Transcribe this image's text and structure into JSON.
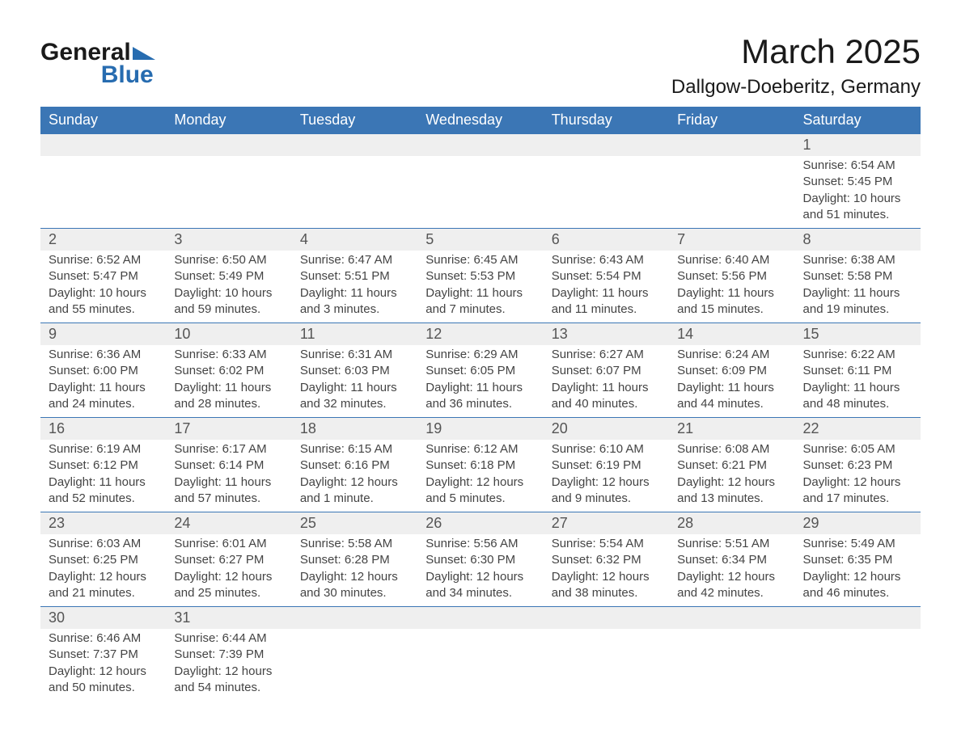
{
  "brand": {
    "name1": "General",
    "name2": "Blue",
    "color_primary": "#276cb0"
  },
  "title": "March 2025",
  "location": "Dallgow-Doeberitz, Germany",
  "colors": {
    "header_bg": "#3b76b5",
    "header_text": "#ffffff",
    "daynum_bg": "#efefef",
    "border": "#3b76b5",
    "text": "#444444",
    "background": "#ffffff"
  },
  "day_headers": [
    "Sunday",
    "Monday",
    "Tuesday",
    "Wednesday",
    "Thursday",
    "Friday",
    "Saturday"
  ],
  "weeks": [
    [
      null,
      null,
      null,
      null,
      null,
      null,
      {
        "n": "1",
        "sr": "Sunrise: 6:54 AM",
        "ss": "Sunset: 5:45 PM",
        "d1": "Daylight: 10 hours",
        "d2": "and 51 minutes."
      }
    ],
    [
      {
        "n": "2",
        "sr": "Sunrise: 6:52 AM",
        "ss": "Sunset: 5:47 PM",
        "d1": "Daylight: 10 hours",
        "d2": "and 55 minutes."
      },
      {
        "n": "3",
        "sr": "Sunrise: 6:50 AM",
        "ss": "Sunset: 5:49 PM",
        "d1": "Daylight: 10 hours",
        "d2": "and 59 minutes."
      },
      {
        "n": "4",
        "sr": "Sunrise: 6:47 AM",
        "ss": "Sunset: 5:51 PM",
        "d1": "Daylight: 11 hours",
        "d2": "and 3 minutes."
      },
      {
        "n": "5",
        "sr": "Sunrise: 6:45 AM",
        "ss": "Sunset: 5:53 PM",
        "d1": "Daylight: 11 hours",
        "d2": "and 7 minutes."
      },
      {
        "n": "6",
        "sr": "Sunrise: 6:43 AM",
        "ss": "Sunset: 5:54 PM",
        "d1": "Daylight: 11 hours",
        "d2": "and 11 minutes."
      },
      {
        "n": "7",
        "sr": "Sunrise: 6:40 AM",
        "ss": "Sunset: 5:56 PM",
        "d1": "Daylight: 11 hours",
        "d2": "and 15 minutes."
      },
      {
        "n": "8",
        "sr": "Sunrise: 6:38 AM",
        "ss": "Sunset: 5:58 PM",
        "d1": "Daylight: 11 hours",
        "d2": "and 19 minutes."
      }
    ],
    [
      {
        "n": "9",
        "sr": "Sunrise: 6:36 AM",
        "ss": "Sunset: 6:00 PM",
        "d1": "Daylight: 11 hours",
        "d2": "and 24 minutes."
      },
      {
        "n": "10",
        "sr": "Sunrise: 6:33 AM",
        "ss": "Sunset: 6:02 PM",
        "d1": "Daylight: 11 hours",
        "d2": "and 28 minutes."
      },
      {
        "n": "11",
        "sr": "Sunrise: 6:31 AM",
        "ss": "Sunset: 6:03 PM",
        "d1": "Daylight: 11 hours",
        "d2": "and 32 minutes."
      },
      {
        "n": "12",
        "sr": "Sunrise: 6:29 AM",
        "ss": "Sunset: 6:05 PM",
        "d1": "Daylight: 11 hours",
        "d2": "and 36 minutes."
      },
      {
        "n": "13",
        "sr": "Sunrise: 6:27 AM",
        "ss": "Sunset: 6:07 PM",
        "d1": "Daylight: 11 hours",
        "d2": "and 40 minutes."
      },
      {
        "n": "14",
        "sr": "Sunrise: 6:24 AM",
        "ss": "Sunset: 6:09 PM",
        "d1": "Daylight: 11 hours",
        "d2": "and 44 minutes."
      },
      {
        "n": "15",
        "sr": "Sunrise: 6:22 AM",
        "ss": "Sunset: 6:11 PM",
        "d1": "Daylight: 11 hours",
        "d2": "and 48 minutes."
      }
    ],
    [
      {
        "n": "16",
        "sr": "Sunrise: 6:19 AM",
        "ss": "Sunset: 6:12 PM",
        "d1": "Daylight: 11 hours",
        "d2": "and 52 minutes."
      },
      {
        "n": "17",
        "sr": "Sunrise: 6:17 AM",
        "ss": "Sunset: 6:14 PM",
        "d1": "Daylight: 11 hours",
        "d2": "and 57 minutes."
      },
      {
        "n": "18",
        "sr": "Sunrise: 6:15 AM",
        "ss": "Sunset: 6:16 PM",
        "d1": "Daylight: 12 hours",
        "d2": "and 1 minute."
      },
      {
        "n": "19",
        "sr": "Sunrise: 6:12 AM",
        "ss": "Sunset: 6:18 PM",
        "d1": "Daylight: 12 hours",
        "d2": "and 5 minutes."
      },
      {
        "n": "20",
        "sr": "Sunrise: 6:10 AM",
        "ss": "Sunset: 6:19 PM",
        "d1": "Daylight: 12 hours",
        "d2": "and 9 minutes."
      },
      {
        "n": "21",
        "sr": "Sunrise: 6:08 AM",
        "ss": "Sunset: 6:21 PM",
        "d1": "Daylight: 12 hours",
        "d2": "and 13 minutes."
      },
      {
        "n": "22",
        "sr": "Sunrise: 6:05 AM",
        "ss": "Sunset: 6:23 PM",
        "d1": "Daylight: 12 hours",
        "d2": "and 17 minutes."
      }
    ],
    [
      {
        "n": "23",
        "sr": "Sunrise: 6:03 AM",
        "ss": "Sunset: 6:25 PM",
        "d1": "Daylight: 12 hours",
        "d2": "and 21 minutes."
      },
      {
        "n": "24",
        "sr": "Sunrise: 6:01 AM",
        "ss": "Sunset: 6:27 PM",
        "d1": "Daylight: 12 hours",
        "d2": "and 25 minutes."
      },
      {
        "n": "25",
        "sr": "Sunrise: 5:58 AM",
        "ss": "Sunset: 6:28 PM",
        "d1": "Daylight: 12 hours",
        "d2": "and 30 minutes."
      },
      {
        "n": "26",
        "sr": "Sunrise: 5:56 AM",
        "ss": "Sunset: 6:30 PM",
        "d1": "Daylight: 12 hours",
        "d2": "and 34 minutes."
      },
      {
        "n": "27",
        "sr": "Sunrise: 5:54 AM",
        "ss": "Sunset: 6:32 PM",
        "d1": "Daylight: 12 hours",
        "d2": "and 38 minutes."
      },
      {
        "n": "28",
        "sr": "Sunrise: 5:51 AM",
        "ss": "Sunset: 6:34 PM",
        "d1": "Daylight: 12 hours",
        "d2": "and 42 minutes."
      },
      {
        "n": "29",
        "sr": "Sunrise: 5:49 AM",
        "ss": "Sunset: 6:35 PM",
        "d1": "Daylight: 12 hours",
        "d2": "and 46 minutes."
      }
    ],
    [
      {
        "n": "30",
        "sr": "Sunrise: 6:46 AM",
        "ss": "Sunset: 7:37 PM",
        "d1": "Daylight: 12 hours",
        "d2": "and 50 minutes."
      },
      {
        "n": "31",
        "sr": "Sunrise: 6:44 AM",
        "ss": "Sunset: 7:39 PM",
        "d1": "Daylight: 12 hours",
        "d2": "and 54 minutes."
      },
      null,
      null,
      null,
      null,
      null
    ]
  ]
}
